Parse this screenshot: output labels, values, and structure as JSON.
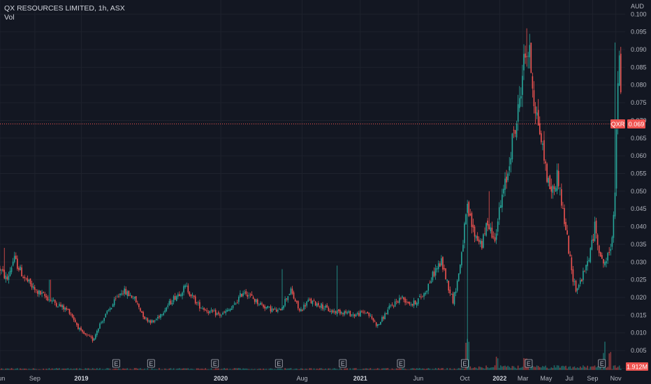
{
  "header": {
    "title": "QX RESOURCES LIMITED, 1h, ASX",
    "indicator": "Vol"
  },
  "colors": {
    "background": "#131722",
    "grid": "#1e222d",
    "up": "#26a69a",
    "down": "#ef5350",
    "text": "#b2b5be",
    "price_line": "#ef5350"
  },
  "chart_data": {
    "type": "candlestick",
    "title": "QX RESOURCES LIMITED, 1h, ASX",
    "currency": "AUD",
    "ylim": [
      -0.0005,
      0.104
    ],
    "y_ticks": [
      "0.100",
      "0.095",
      "0.090",
      "0.085",
      "0.080",
      "0.075",
      "0.070",
      "0.065",
      "0.060",
      "0.055",
      "0.050",
      "0.045",
      "0.040",
      "0.035",
      "0.030",
      "0.025",
      "0.020",
      "0.015",
      "0.010",
      "0.005",
      "0.000"
    ],
    "x_ticks": [
      {
        "label": "Jun",
        "bold": false,
        "t": 0.0
      },
      {
        "label": "Sep",
        "bold": false,
        "t": 3.0
      },
      {
        "label": "2019",
        "bold": true,
        "t": 7.0
      },
      {
        "label": "2020",
        "bold": true,
        "t": 19.0
      },
      {
        "label": "Aug",
        "bold": false,
        "t": 26.0
      },
      {
        "label": "2021",
        "bold": true,
        "t": 31.0
      },
      {
        "label": "Jun",
        "bold": false,
        "t": 36.0
      },
      {
        "label": "Oct",
        "bold": false,
        "t": 40.0
      },
      {
        "label": "2022",
        "bold": true,
        "t": 43.0
      },
      {
        "label": "Mar",
        "bold": false,
        "t": 45.0
      },
      {
        "label": "May",
        "bold": false,
        "t": 47.0
      },
      {
        "label": "Jul",
        "bold": false,
        "t": 49.0
      },
      {
        "label": "Sep",
        "bold": false,
        "t": 51.0
      },
      {
        "label": "Nov",
        "bold": false,
        "t": 53.0
      }
    ],
    "x_range": [
      0,
      53.8
    ],
    "earnings_markers": {
      "label": "E",
      "t": [
        10.0,
        13.0,
        18.5,
        24.0,
        29.5,
        34.5,
        40.0,
        45.5,
        51.8
      ]
    },
    "price_anchors": {
      "t": [
        0.0,
        0.6,
        1.2,
        2.0,
        3.0,
        4.0,
        5.0,
        6.0,
        7.0,
        8.0,
        8.5,
        9.5,
        10.5,
        11.5,
        12.5,
        13.2,
        14.0,
        15.0,
        16.0,
        17.0,
        18.0,
        19.0,
        20.0,
        21.0,
        22.0,
        23.0,
        24.0,
        25.0,
        25.8,
        26.5,
        27.5,
        28.5,
        29.5,
        30.5,
        31.5,
        32.5,
        33.5,
        34.5,
        35.5,
        36.5,
        37.5,
        38.0,
        38.6,
        39.0,
        39.5,
        40.2,
        40.8,
        41.5,
        42.0,
        42.5,
        43.2,
        43.7,
        44.0,
        44.5,
        45.0,
        45.3,
        45.6,
        46.0,
        46.4,
        46.8,
        47.2,
        47.6,
        48.0,
        48.4,
        48.8,
        49.2,
        49.6,
        50.0,
        50.4,
        50.8,
        51.2,
        51.5,
        51.8,
        52.1,
        52.4,
        52.6,
        52.9,
        53.2
      ],
      "price": [
        0.028,
        0.025,
        0.031,
        0.026,
        0.022,
        0.02,
        0.018,
        0.016,
        0.01,
        0.008,
        0.012,
        0.017,
        0.022,
        0.02,
        0.014,
        0.013,
        0.016,
        0.02,
        0.023,
        0.018,
        0.016,
        0.015,
        0.017,
        0.022,
        0.019,
        0.017,
        0.016,
        0.022,
        0.016,
        0.019,
        0.018,
        0.016,
        0.016,
        0.015,
        0.016,
        0.012,
        0.017,
        0.02,
        0.018,
        0.021,
        0.028,
        0.03,
        0.023,
        0.019,
        0.027,
        0.045,
        0.038,
        0.035,
        0.042,
        0.036,
        0.048,
        0.055,
        0.063,
        0.07,
        0.085,
        0.09,
        0.088,
        0.075,
        0.068,
        0.06,
        0.052,
        0.05,
        0.055,
        0.045,
        0.037,
        0.027,
        0.022,
        0.025,
        0.028,
        0.033,
        0.04,
        0.035,
        0.03,
        0.03,
        0.032,
        0.035,
        0.048,
        0.085
      ]
    },
    "price_end": [
      53.3,
      53.55
    ],
    "end_path_price": [
      0.085,
      0.08,
      0.072,
      0.069
    ],
    "spikes": [
      {
        "t": 0.4,
        "high": 0.034
      },
      {
        "t": 4.3,
        "high": 0.025
      },
      {
        "t": 24.3,
        "high": 0.028
      },
      {
        "t": 29.0,
        "high": 0.029
      },
      {
        "t": 40.2,
        "high": 0.03
      },
      {
        "t": 42.1,
        "high": 0.05
      },
      {
        "t": 45.3,
        "high": 0.096
      },
      {
        "t": 52.9,
        "high": 0.092
      }
    ],
    "last_price": "0.069",
    "last_price_value": 0.069,
    "symbol": "QXR",
    "volume": {
      "last_label": "1.912M",
      "bursts": [
        {
          "t": 40.2,
          "height": 0.9
        },
        {
          "t": 42.8,
          "height": 0.35
        },
        {
          "t": 45.2,
          "height": 0.45
        },
        {
          "t": 52.0,
          "height": 0.8
        },
        {
          "t": 52.5,
          "height": 0.6
        }
      ]
    }
  }
}
